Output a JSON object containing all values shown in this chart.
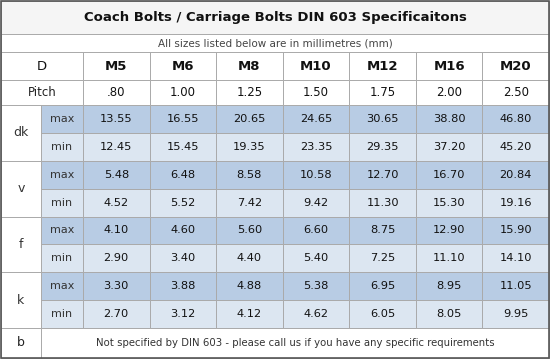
{
  "title": "Coach Bolts / Carriage Bolts DIN 603 Specificaitons",
  "subtitle": "All sizes listed below are in millimetres (mm)",
  "pitch_row": [
    ".80",
    "1.00",
    "1.25",
    "1.50",
    "1.75",
    "2.00",
    "2.50"
  ],
  "rows": [
    {
      "group": "dk",
      "label": "max",
      "values": [
        "13.55",
        "16.55",
        "20.65",
        "24.65",
        "30.65",
        "38.80",
        "46.80"
      ]
    },
    {
      "group": "dk",
      "label": "min",
      "values": [
        "12.45",
        "15.45",
        "19.35",
        "23.35",
        "29.35",
        "37.20",
        "45.20"
      ]
    },
    {
      "group": "v",
      "label": "max",
      "values": [
        "5.48",
        "6.48",
        "8.58",
        "10.58",
        "12.70",
        "16.70",
        "20.84"
      ]
    },
    {
      "group": "v",
      "label": "min",
      "values": [
        "4.52",
        "5.52",
        "7.42",
        "9.42",
        "11.30",
        "15.30",
        "19.16"
      ]
    },
    {
      "group": "f",
      "label": "max",
      "values": [
        "4.10",
        "4.60",
        "5.60",
        "6.60",
        "8.75",
        "12.90",
        "15.90"
      ]
    },
    {
      "group": "f",
      "label": "min",
      "values": [
        "2.90",
        "3.40",
        "4.40",
        "5.40",
        "7.25",
        "11.10",
        "14.10"
      ]
    },
    {
      "group": "k",
      "label": "max",
      "values": [
        "3.30",
        "3.88",
        "4.88",
        "5.38",
        "6.95",
        "8.95",
        "11.05"
      ]
    },
    {
      "group": "k",
      "label": "min",
      "values": [
        "2.70",
        "3.12",
        "4.12",
        "4.62",
        "6.05",
        "8.05",
        "9.95"
      ]
    }
  ],
  "b_row_text": "Not specified by DIN 603 - please call us if you have any specific requirements",
  "col_headers": [
    "M5",
    "M6",
    "M8",
    "M10",
    "M12",
    "M16",
    "M20"
  ],
  "color_max_row_bg": "#b8cce4",
  "color_min_row_bg": "#dce6f1",
  "color_group_bg": "#ffffff",
  "color_white": "#ffffff",
  "color_border": "#aaaaaa",
  "color_title_bg": "#f5f5f5",
  "color_text_dark": "#111111",
  "color_text_mid": "#333333"
}
